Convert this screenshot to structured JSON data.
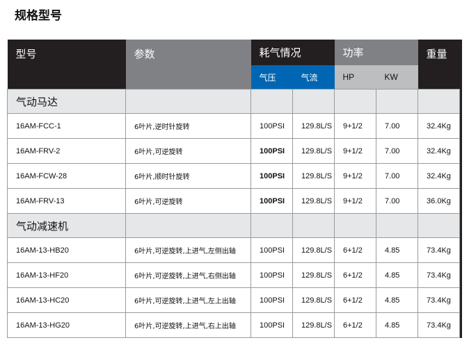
{
  "title": "规格型号",
  "header": {
    "model": "型号",
    "params": "参数",
    "air": "耗气情况",
    "power": "功率",
    "weight": "重量",
    "pressure": "气压",
    "flow": "气流",
    "hp": "HP",
    "kw": "KW"
  },
  "colors": {
    "dark": "#231f20",
    "gray": "#808184",
    "blue": "#0066b3",
    "light": "#bcbec0",
    "category": "#e6e7e8"
  },
  "groups": [
    {
      "name": "气动马达",
      "rows": [
        {
          "model": "16AM-FCC-1",
          "params": "6叶片,逆时针旋转",
          "pressure": "100PSI",
          "flow": "129.8L/S",
          "hp": "9+1/2",
          "kw": "7.00",
          "weight": "32.4Kg"
        },
        {
          "model": "16AM-FRV-2",
          "params": "6叶片,可逆旋转",
          "pressure": "100PSI",
          "flow": "129.8L/S",
          "hp": "9+1/2",
          "kw": "7.00",
          "weight": "32.4Kg"
        },
        {
          "model": "16AM-FCW-28",
          "params": "6叶片,顺时针旋转",
          "pressure": "100PSI",
          "flow": "129.8L/S",
          "hp": "9+1/2",
          "kw": "7.00",
          "weight": "32.4Kg"
        },
        {
          "model": "16AM-FRV-13",
          "params": "6叶片,可逆旋转",
          "pressure": "100PSI",
          "flow": "129.8L/S",
          "hp": "9+1/2",
          "kw": "7.00",
          "weight": "36.0Kg"
        }
      ]
    },
    {
      "name": "气动减速机",
      "rows": [
        {
          "model": "16AM-13-HB20",
          "params": "6叶片,可逆旋转,上进气,左侧出轴",
          "pressure": "100PSI",
          "flow": "129.8L/S",
          "hp": "6+1/2",
          "kw": "4.85",
          "weight": "73.4Kg"
        },
        {
          "model": "16AM-13-HF20",
          "params": "6叶片,可逆旋转,上进气,右侧出轴",
          "pressure": "100PSI",
          "flow": "129.8L/S",
          "hp": "6+1/2",
          "kw": "4.85",
          "weight": "73.4Kg"
        },
        {
          "model": "16AM-13-HC20",
          "params": "6叶片,可逆旋转,上进气,左上出轴",
          "pressure": "100PSI",
          "flow": "129.8L/S",
          "hp": "6+1/2",
          "kw": "4.85",
          "weight": "73.4Kg"
        },
        {
          "model": "16AM-13-HG20",
          "params": "6叶片,可逆旋转,上进气,右上出轴",
          "pressure": "100PSI",
          "flow": "129.8L/S",
          "hp": "6+1/2",
          "kw": "4.85",
          "weight": "73.4Kg"
        }
      ]
    }
  ]
}
